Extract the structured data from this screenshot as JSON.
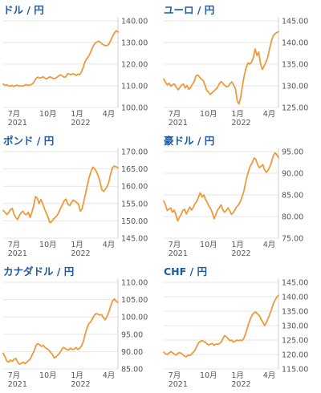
{
  "chart_data": [
    {
      "type": "line",
      "title": "ドル / 円",
      "ylim": [
        100,
        140
      ],
      "yticks": [
        "100.00",
        "110.00",
        "120.00",
        "130.00",
        "140.00"
      ],
      "x_ticks": [
        {
          "label": "7月",
          "label2": "2021"
        },
        {
          "label": "10月",
          "label2": ""
        },
        {
          "label": "1月",
          "label2": "2022"
        },
        {
          "label": "4月",
          "label2": ""
        }
      ],
      "grid": true,
      "series": [
        {
          "values": [
            110.8,
            110.2,
            110.5,
            110.0,
            109.8,
            110.2,
            109.7,
            110.1,
            110.3,
            109.9,
            110.0,
            109.8,
            110.1,
            110.6,
            110.3,
            110.2,
            110.6,
            111.0,
            112.2,
            113.5,
            114.0,
            113.6,
            113.8,
            114.2,
            113.5,
            113.2,
            113.8,
            114.2,
            113.7,
            113.3,
            113.5,
            114.0,
            114.6,
            115.1,
            114.5,
            114.0,
            114.2,
            115.6,
            115.4,
            115.2,
            115.6,
            115.3,
            114.8,
            115.4,
            115.1,
            116.5,
            118.5,
            121.0,
            122.5,
            123.5,
            125.0,
            127.0,
            128.8,
            129.8,
            130.3,
            130.6,
            130.0,
            129.2,
            128.8,
            128.5,
            128.7,
            129.5,
            131.3,
            133.0,
            134.5,
            135.5,
            134.8
          ]
        }
      ]
    },
    {
      "type": "line",
      "title": "ユーロ / 円",
      "ylim": [
        125,
        145
      ],
      "yticks": [
        "125.00",
        "130.00",
        "135.00",
        "140.00",
        "145.00"
      ],
      "x_ticks": [
        {
          "label": "7月",
          "label2": "2021"
        },
        {
          "label": "10月",
          "label2": ""
        },
        {
          "label": "1月",
          "label2": "2022"
        },
        {
          "label": "4月",
          "label2": ""
        }
      ],
      "grid": true,
      "series": [
        {
          "values": [
            131.6,
            130.8,
            130.2,
            130.6,
            129.9,
            130.3,
            130.4,
            129.7,
            129.1,
            129.6,
            130.2,
            130.4,
            129.5,
            130.1,
            129.2,
            129.6,
            130.4,
            131.0,
            132.3,
            132.5,
            132.0,
            131.6,
            131.2,
            130.2,
            129.0,
            128.5,
            128.0,
            128.4,
            128.8,
            129.2,
            129.6,
            130.5,
            131.0,
            130.6,
            130.1,
            129.8,
            129.9,
            130.5,
            130.9,
            130.2,
            129.3,
            126.5,
            125.8,
            127.5,
            130.2,
            132.5,
            134.2,
            135.3,
            135.0,
            135.5,
            136.5,
            138.5,
            137.0,
            137.8,
            135.0,
            133.8,
            134.6,
            135.5,
            136.6,
            138.5,
            140.2,
            141.5,
            142.0,
            142.3,
            142.5
          ]
        }
      ]
    },
    {
      "type": "line",
      "title": "ポンド / 円",
      "ylim": [
        145,
        170
      ],
      "yticks": [
        "145.00",
        "150.00",
        "155.00",
        "160.00",
        "165.00",
        "170.00"
      ],
      "x_ticks": [
        {
          "label": "7月",
          "label2": "2021"
        },
        {
          "label": "10月",
          "label2": ""
        },
        {
          "label": "1月",
          "label2": "2022"
        },
        {
          "label": "4月",
          "label2": ""
        }
      ],
      "grid": true,
      "series": [
        {
          "values": [
            153.0,
            152.5,
            151.8,
            152.4,
            153.2,
            153.6,
            152.0,
            151.0,
            150.4,
            151.5,
            152.4,
            152.8,
            152.0,
            151.8,
            152.5,
            151.0,
            152.5,
            154.5,
            157.0,
            156.5,
            155.0,
            156.2,
            155.0,
            153.5,
            152.3,
            151.0,
            149.5,
            149.8,
            150.5,
            151.0,
            151.5,
            152.5,
            153.6,
            154.7,
            155.8,
            156.3,
            154.9,
            154.4,
            155.2,
            156.0,
            155.7,
            155.3,
            154.8,
            152.8,
            153.5,
            155.7,
            158.0,
            160.5,
            162.7,
            164.3,
            165.5,
            165.0,
            164.2,
            163.0,
            161.2,
            159.0,
            158.5,
            159.2,
            160.0,
            161.4,
            163.8,
            165.4,
            165.8,
            165.6,
            165.3
          ]
        }
      ]
    },
    {
      "type": "line",
      "title": "豪ドル / 円",
      "ylim": [
        75,
        95
      ],
      "yticks": [
        "75.00",
        "80.00",
        "85.00",
        "90.00",
        "95.00"
      ],
      "x_ticks": [
        {
          "label": "7月",
          "label2": "2021"
        },
        {
          "label": "10月",
          "label2": ""
        },
        {
          "label": "1月",
          "label2": "2022"
        },
        {
          "label": "4月",
          "label2": ""
        }
      ],
      "grid": true,
      "series": [
        {
          "values": [
            83.6,
            82.7,
            81.4,
            81.7,
            82.0,
            81.0,
            81.5,
            80.5,
            79.0,
            79.8,
            80.5,
            81.4,
            81.7,
            80.6,
            81.4,
            82.2,
            81.5,
            82.1,
            83.0,
            83.5,
            84.5,
            85.5,
            84.5,
            85.0,
            84.0,
            83.3,
            82.4,
            81.8,
            80.8,
            79.5,
            80.5,
            81.5,
            82.1,
            82.7,
            81.5,
            81.0,
            81.4,
            82.0,
            81.3,
            80.5,
            80.9,
            81.6,
            82.3,
            82.7,
            83.4,
            84.5,
            85.7,
            87.6,
            89.4,
            90.8,
            91.8,
            92.5,
            93.5,
            93.2,
            92.0,
            91.3,
            91.6,
            92.0,
            90.8,
            90.2,
            90.7,
            91.5,
            92.6,
            94.0,
            94.7,
            94.3,
            93.6
          ]
        }
      ]
    },
    {
      "type": "line",
      "title": "カナダドル / 円",
      "ylim": [
        85,
        110
      ],
      "yticks": [
        "85.00",
        "90.00",
        "95.00",
        "100.00",
        "105.00",
        "110.00"
      ],
      "x_ticks": [
        {
          "label": "7月",
          "label2": "2021"
        },
        {
          "label": "10月",
          "label2": ""
        },
        {
          "label": "1月",
          "label2": "2022"
        },
        {
          "label": "4月",
          "label2": ""
        }
      ],
      "grid": true,
      "series": [
        {
          "values": [
            89.5,
            88.5,
            87.3,
            87.0,
            87.6,
            87.2,
            87.8,
            88.0,
            86.8,
            86.4,
            86.6,
            87.0,
            86.5,
            87.0,
            87.4,
            88.0,
            89.2,
            90.2,
            91.8,
            92.3,
            92.0,
            91.5,
            91.8,
            91.2,
            90.8,
            90.5,
            89.8,
            89.2,
            88.2,
            88.5,
            89.0,
            89.6,
            90.5,
            91.2,
            90.9,
            90.6,
            90.5,
            91.0,
            90.6,
            90.7,
            91.2,
            90.6,
            91.0,
            91.6,
            93.0,
            95.0,
            96.8,
            98.0,
            98.6,
            99.5,
            100.5,
            101.0,
            100.8,
            100.5,
            100.7,
            99.8,
            99.2,
            100.2,
            101.5,
            103.2,
            104.6,
            105.2,
            104.5,
            104.2
          ]
        }
      ]
    },
    {
      "type": "line",
      "title": "CHF / 円",
      "ylim": [
        115,
        145
      ],
      "yticks": [
        "115.00",
        "120.00",
        "125.00",
        "130.00",
        "135.00",
        "140.00",
        "145.00"
      ],
      "x_ticks": [
        {
          "label": "7月",
          "label2": "2021"
        },
        {
          "label": "10月",
          "label2": ""
        },
        {
          "label": "1月",
          "label2": "2022"
        },
        {
          "label": "4月",
          "label2": ""
        }
      ],
      "grid": true,
      "series": [
        {
          "values": [
            120.8,
            120.3,
            120.0,
            120.5,
            121.0,
            120.6,
            120.2,
            119.8,
            120.3,
            120.7,
            120.4,
            120.0,
            119.4,
            119.2,
            119.8,
            119.6,
            120.2,
            120.8,
            121.5,
            122.8,
            124.0,
            124.5,
            124.8,
            124.5,
            124.2,
            123.6,
            123.3,
            123.6,
            123.8,
            123.2,
            123.6,
            123.5,
            123.8,
            124.2,
            125.5,
            126.5,
            126.2,
            125.5,
            124.8,
            125.0,
            124.3,
            124.6,
            125.0,
            124.8,
            125.0,
            124.8,
            125.5,
            127.0,
            129.0,
            131.0,
            132.5,
            133.8,
            134.5,
            134.7,
            134.0,
            133.5,
            132.2,
            131.2,
            130.0,
            131.0,
            132.5,
            134.0,
            135.5,
            137.5,
            138.8,
            139.8,
            140.5
          ]
        }
      ]
    }
  ]
}
